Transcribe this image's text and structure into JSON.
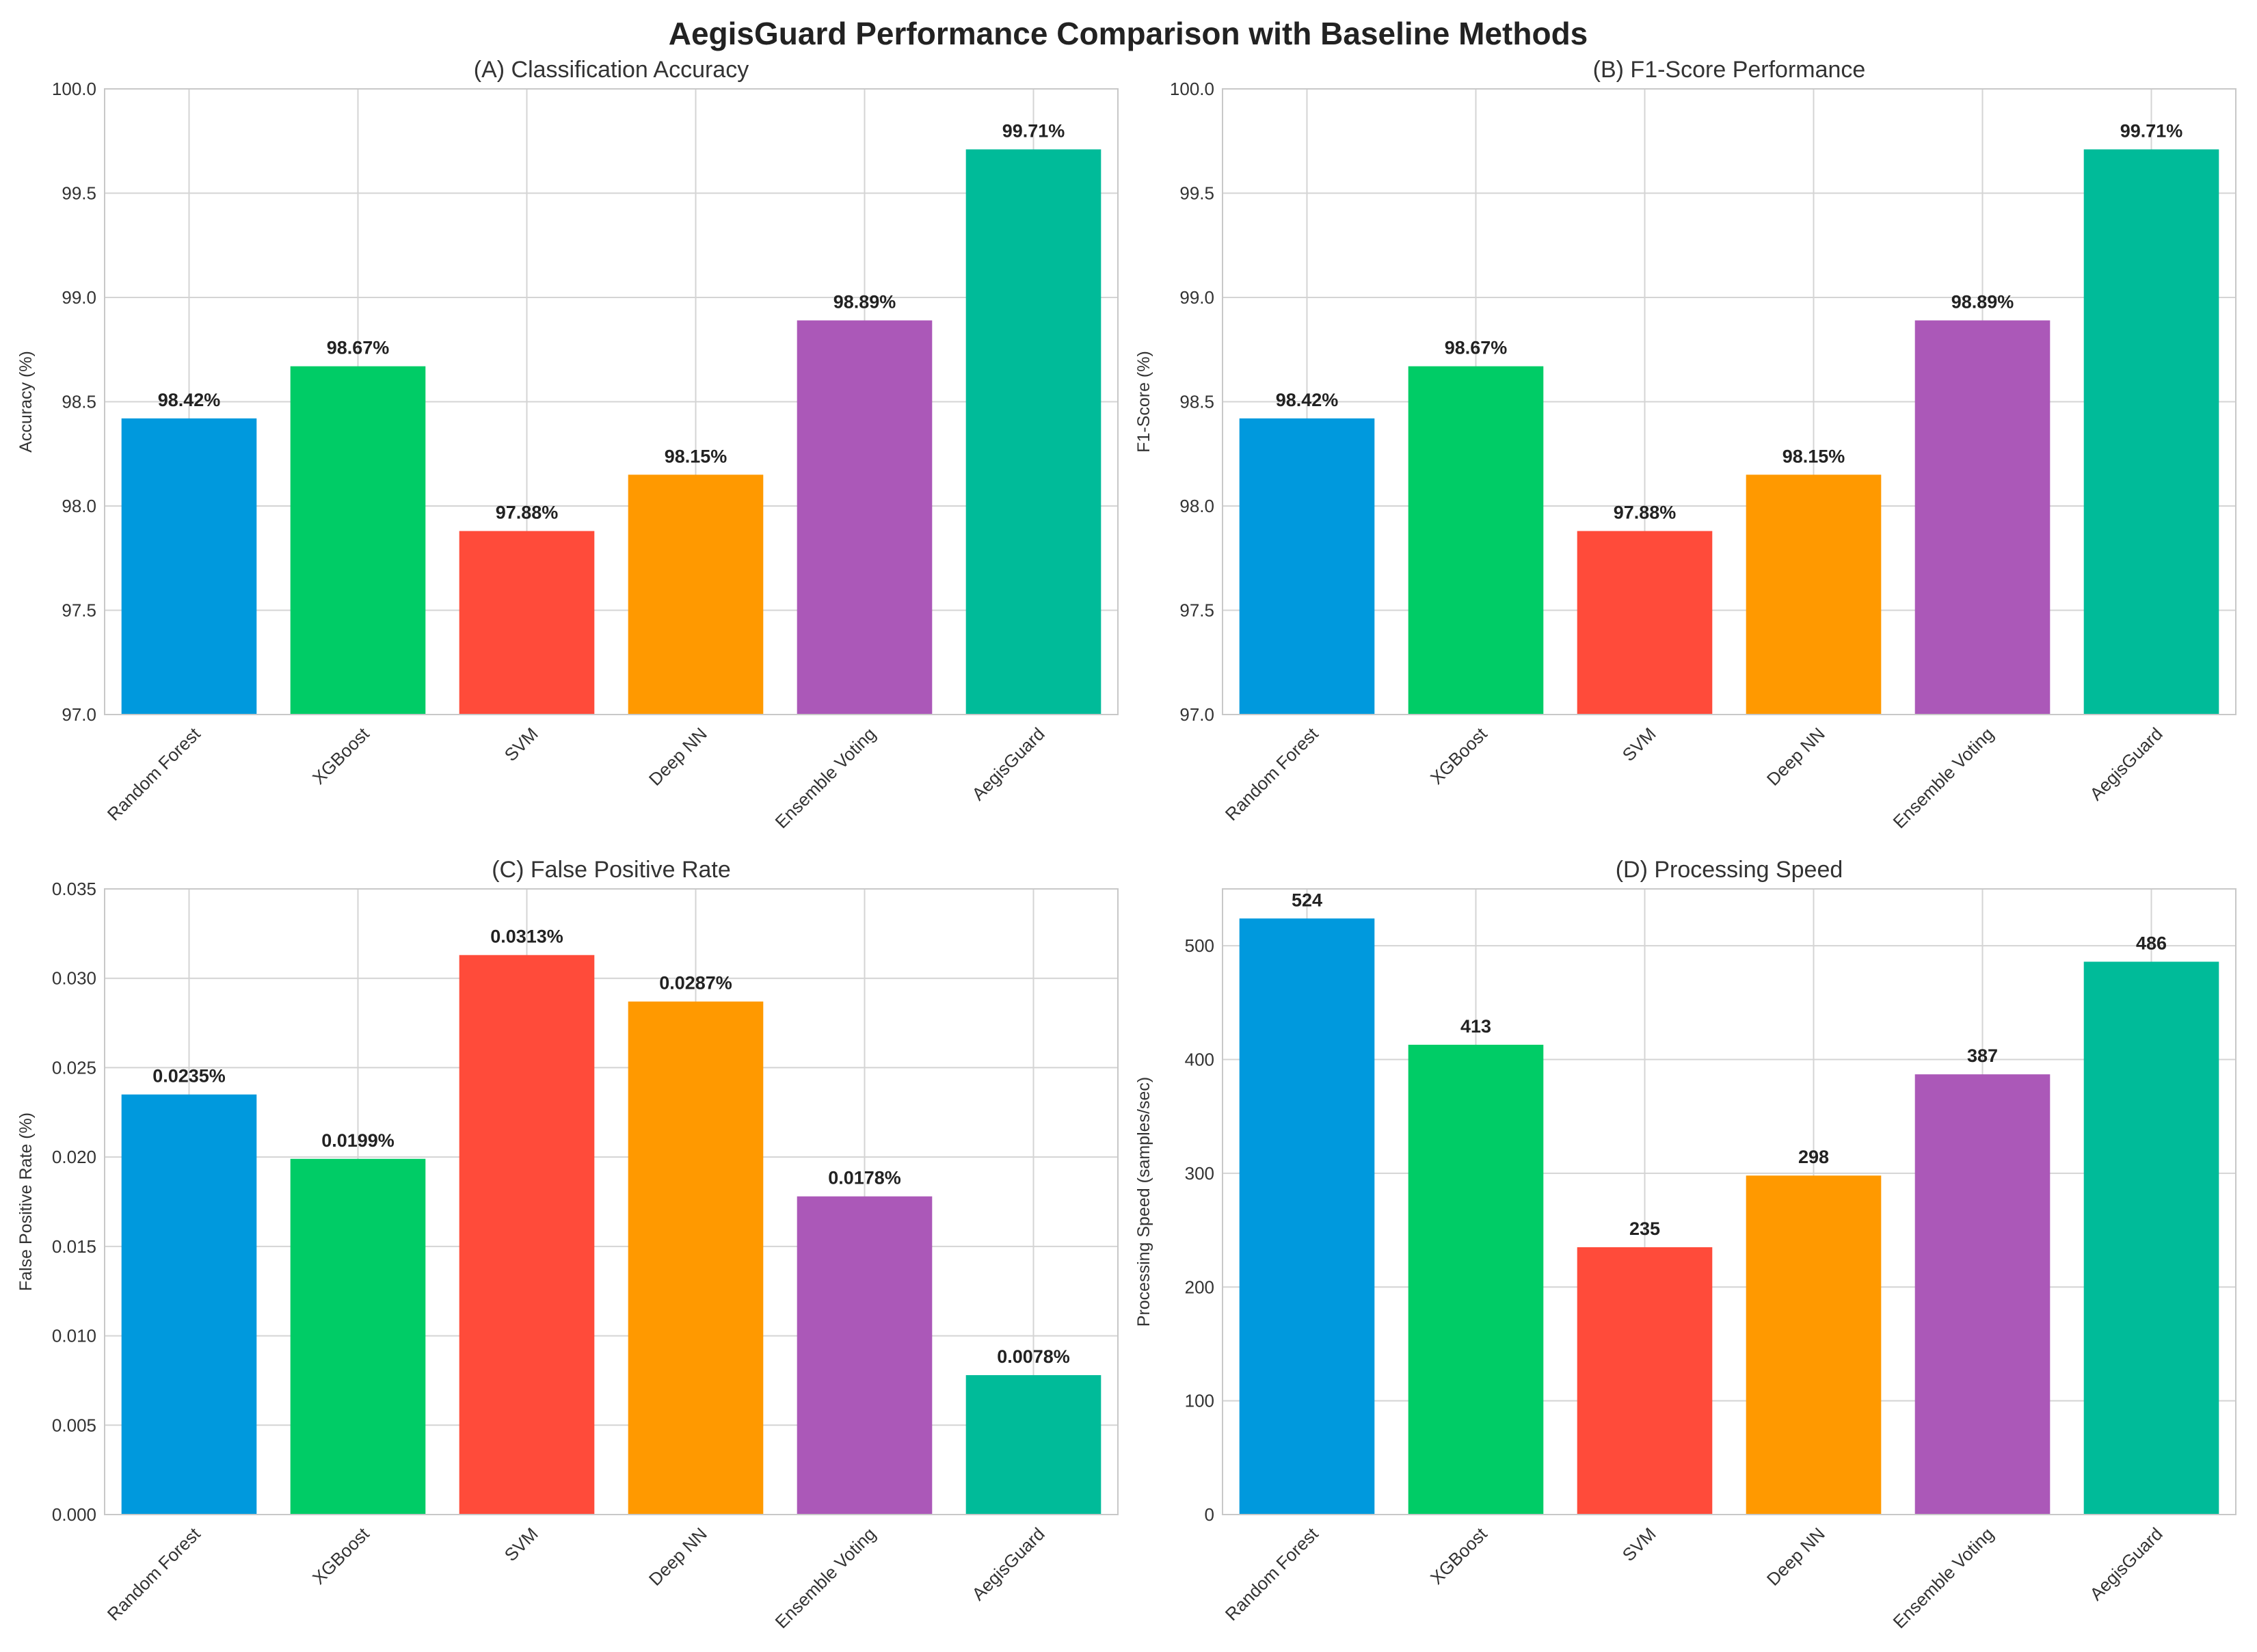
{
  "figure_title": "AegisGuard Performance Comparison with Baseline Methods",
  "chart_data": [
    {
      "type": "bar",
      "title": "(A) Classification Accuracy",
      "xlabel": "",
      "ylabel": "Accuracy (%)",
      "categories": [
        "Random Forest",
        "XGBoost",
        "SVM",
        "Deep NN",
        "Ensemble Voting",
        "AegisGuard"
      ],
      "values": [
        98.42,
        98.67,
        97.88,
        98.15,
        98.89,
        99.71
      ],
      "value_labels": [
        "98.42%",
        "98.67%",
        "97.88%",
        "98.15%",
        "98.89%",
        "99.71%"
      ],
      "ylim": [
        97.0,
        100.0
      ],
      "yticks": [
        97.0,
        97.5,
        98.0,
        98.5,
        99.0,
        99.5,
        100.0
      ],
      "ytick_labels": [
        "97.0",
        "97.5",
        "98.0",
        "98.5",
        "99.0",
        "99.5",
        "100.0"
      ],
      "grid": true
    },
    {
      "type": "bar",
      "title": "(B) F1-Score Performance",
      "xlabel": "",
      "ylabel": "F1-Score (%)",
      "categories": [
        "Random Forest",
        "XGBoost",
        "SVM",
        "Deep NN",
        "Ensemble Voting",
        "AegisGuard"
      ],
      "values": [
        98.42,
        98.67,
        97.88,
        98.15,
        98.89,
        99.71
      ],
      "value_labels": [
        "98.42%",
        "98.67%",
        "97.88%",
        "98.15%",
        "98.89%",
        "99.71%"
      ],
      "ylim": [
        97.0,
        100.0
      ],
      "yticks": [
        97.0,
        97.5,
        98.0,
        98.5,
        99.0,
        99.5,
        100.0
      ],
      "ytick_labels": [
        "97.0",
        "97.5",
        "98.0",
        "98.5",
        "99.0",
        "99.5",
        "100.0"
      ],
      "grid": true
    },
    {
      "type": "bar",
      "title": "(C) False Positive Rate",
      "xlabel": "",
      "ylabel": "False Positive Rate (%)",
      "categories": [
        "Random Forest",
        "XGBoost",
        "SVM",
        "Deep NN",
        "Ensemble Voting",
        "AegisGuard"
      ],
      "values": [
        0.0235,
        0.0199,
        0.0313,
        0.0287,
        0.0178,
        0.0078
      ],
      "value_labels": [
        "0.0235%",
        "0.0199%",
        "0.0313%",
        "0.0287%",
        "0.0178%",
        "0.0078%"
      ],
      "ylim": [
        0.0,
        0.035
      ],
      "yticks": [
        0.0,
        0.005,
        0.01,
        0.015,
        0.02,
        0.025,
        0.03,
        0.035
      ],
      "ytick_labels": [
        "0.000",
        "0.005",
        "0.010",
        "0.015",
        "0.020",
        "0.025",
        "0.030",
        "0.035"
      ],
      "grid": true
    },
    {
      "type": "bar",
      "title": "(D) Processing Speed",
      "xlabel": "",
      "ylabel": "Processing Speed (samples/sec)",
      "categories": [
        "Random Forest",
        "XGBoost",
        "SVM",
        "Deep NN",
        "Ensemble Voting",
        "AegisGuard"
      ],
      "values": [
        524,
        413,
        235,
        298,
        387,
        486
      ],
      "value_labels": [
        "524",
        "413",
        "235",
        "298",
        "387",
        "486"
      ],
      "ylim": [
        0,
        550
      ],
      "yticks": [
        0,
        100,
        200,
        300,
        400,
        500
      ],
      "ytick_labels": [
        "0",
        "100",
        "200",
        "300",
        "400",
        "500"
      ],
      "grid": true
    }
  ],
  "bar_colors": [
    "#0099dd",
    "#00cc66",
    "#ff4b3a",
    "#ff9900",
    "#ab58b8",
    "#00bb99"
  ]
}
